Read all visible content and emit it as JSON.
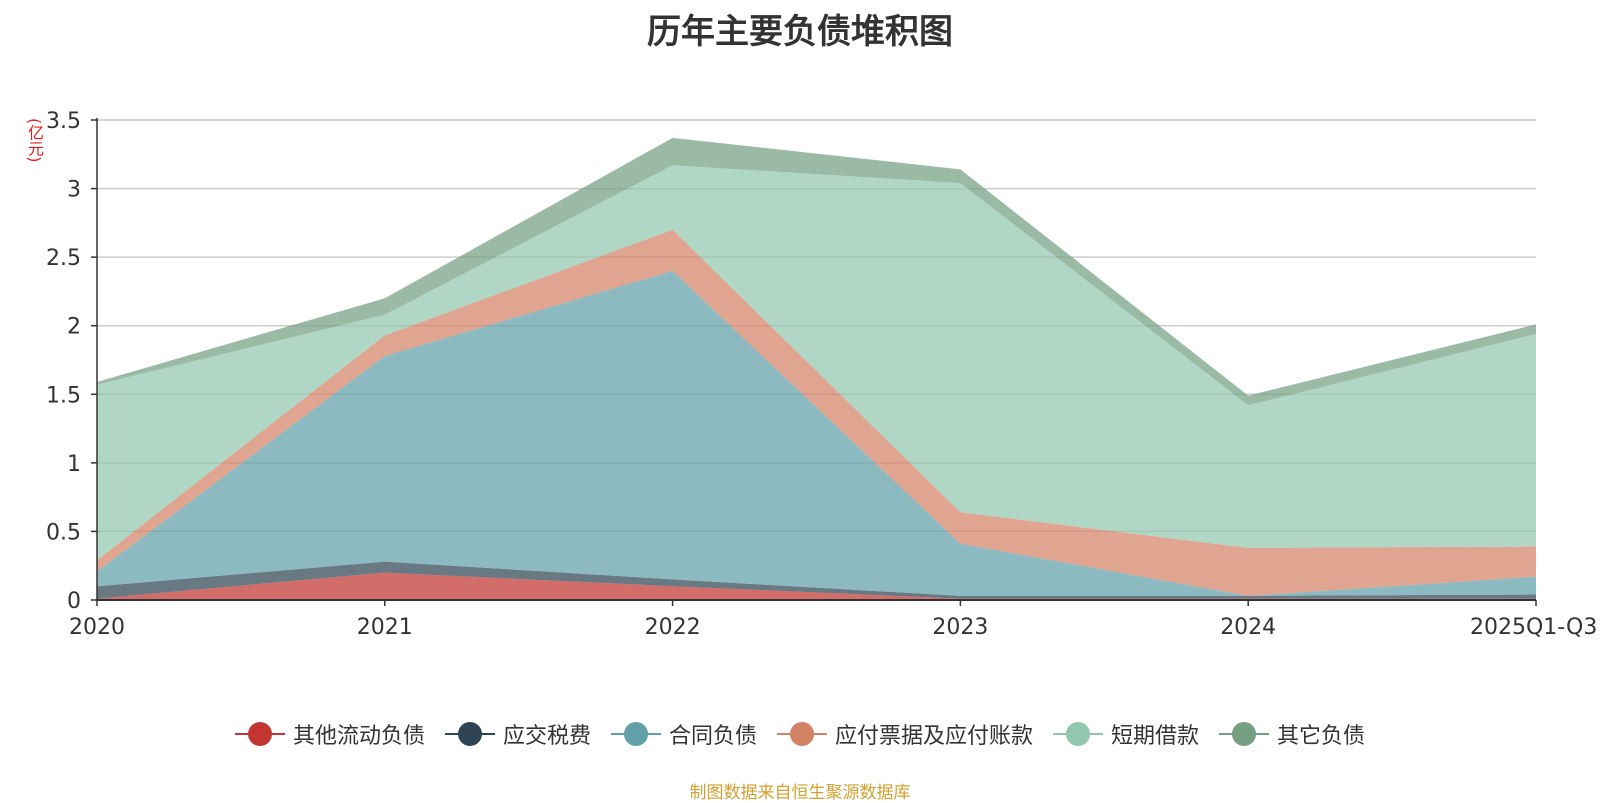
{
  "chart_data": {
    "type": "area",
    "title": "历年主要负债堆积图",
    "ylabel": "(亿元)",
    "stacked": true,
    "categories": [
      "2020",
      "2021",
      "2022",
      "2023",
      "2024",
      "2025Q1-Q3"
    ],
    "ylim": [
      0,
      3.5
    ],
    "yticks": [
      0,
      0.5,
      1,
      1.5,
      2,
      2.5,
      3,
      3.5
    ],
    "ytick_labels": [
      "0",
      "0.5",
      "1",
      "1.5",
      "2",
      "2.5",
      "3",
      "3.5"
    ],
    "series": [
      {
        "name": "其他流动负债",
        "color": "#c23531",
        "values": [
          0.01,
          0.2,
          0.1,
          0.01,
          0.01,
          0.01
        ]
      },
      {
        "name": "应交税费",
        "color": "#2f4554",
        "values": [
          0.09,
          0.08,
          0.05,
          0.02,
          0.02,
          0.03
        ]
      },
      {
        "name": "合同负债",
        "color": "#61a0a8",
        "values": [
          0.11,
          1.5,
          2.25,
          0.38,
          0.0,
          0.13
        ]
      },
      {
        "name": "应付票据及应付账款",
        "color": "#d48265",
        "values": [
          0.08,
          0.15,
          0.3,
          0.23,
          0.35,
          0.22
        ]
      },
      {
        "name": "短期借款",
        "color": "#91c7ae",
        "values": [
          1.28,
          0.15,
          0.47,
          2.4,
          1.04,
          1.55
        ]
      },
      {
        "name": "其它负债",
        "color": "#749f83",
        "values": [
          0.02,
          0.12,
          0.2,
          0.1,
          0.07,
          0.07
        ]
      }
    ],
    "legend_position": "bottom-center",
    "grid": true
  },
  "source_note": "制图数据来自恒生聚源数据库"
}
